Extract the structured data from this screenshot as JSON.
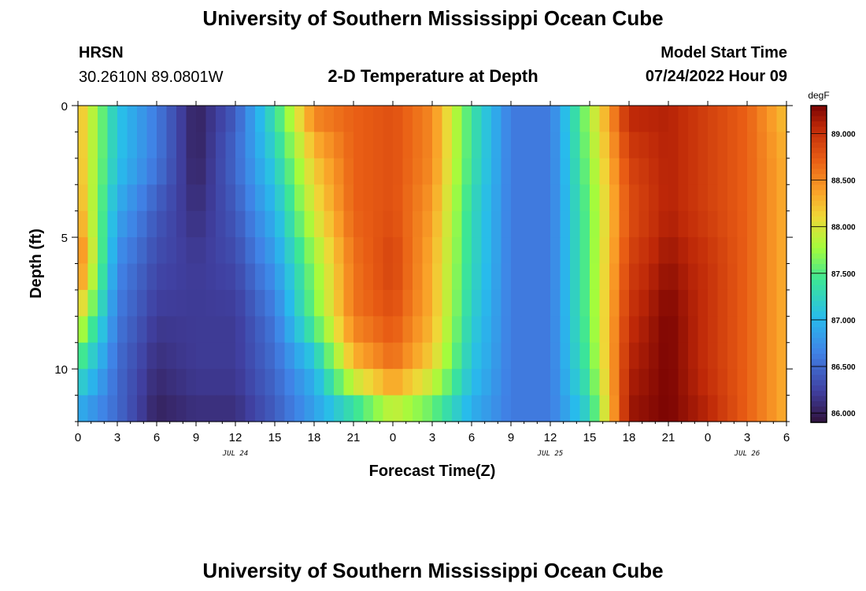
{
  "page": {
    "title": "University of Southern Mississippi Ocean Cube",
    "station": "HRSN",
    "coords": "30.2610N  89.0801W",
    "subtitle": "2-D Temperature at Depth",
    "model_start_label": "Model Start Time",
    "model_start_value": "07/24/2022 Hour 09",
    "footer_title": "University of Southern Mississippi Ocean Cube"
  },
  "chart_data": {
    "type": "heatmap",
    "title": "2-D Temperature at Depth",
    "xlabel": "Forecast Time(Z)",
    "ylabel": "Depth (ft)",
    "x_unit": "hours from Jul 24 00Z",
    "x_range": [
      0,
      54
    ],
    "y_range": [
      0,
      12
    ],
    "y_inverted": true,
    "x_ticks": [
      0,
      3,
      6,
      9,
      12,
      15,
      18,
      21,
      24,
      27,
      30,
      33,
      36,
      39,
      42,
      45,
      48,
      51,
      54
    ],
    "x_tick_labels": [
      "0",
      "3",
      "6",
      "9",
      "12",
      "15",
      "18",
      "21",
      "0",
      "3",
      "6",
      "9",
      "12",
      "15",
      "18",
      "21",
      "0",
      "3",
      "6"
    ],
    "y_ticks": [
      0,
      5,
      10
    ],
    "y_tick_labels": [
      "0",
      "5",
      "10"
    ],
    "date_labels": [
      {
        "text": "JUL 24",
        "x": 12
      },
      {
        "text": "JUL 25",
        "x": 36
      },
      {
        "text": "JUL 26",
        "x": 51
      }
    ],
    "colorbar": {
      "unit": "degF",
      "min": 85.9,
      "max": 89.3,
      "ticks": [
        86.0,
        86.5,
        87.0,
        87.5,
        88.0,
        88.5,
        89.0
      ],
      "tick_labels": [
        "86.000",
        "86.500",
        "87.000",
        "87.500",
        "88.000",
        "88.500",
        "89.000"
      ]
    },
    "time_hours": [
      0,
      3,
      6,
      9,
      12,
      15,
      18,
      21,
      24,
      27,
      30,
      33,
      36,
      39,
      42,
      45,
      48,
      51,
      54
    ],
    "depths_ft": [
      0,
      2,
      4,
      6,
      8,
      10,
      12
    ],
    "temperature_degF": [
      [
        88.3,
        87.1,
        86.6,
        86.0,
        86.4,
        87.4,
        88.6,
        88.7,
        88.8,
        88.5,
        87.4,
        86.6,
        86.6,
        87.8,
        89.1,
        89.1,
        88.9,
        88.7,
        88.2
      ],
      [
        88.3,
        87.1,
        86.6,
        86.0,
        86.5,
        87.2,
        88.2,
        88.7,
        88.8,
        88.5,
        87.4,
        86.6,
        86.6,
        87.7,
        88.9,
        89.1,
        88.9,
        88.7,
        88.3
      ],
      [
        88.4,
        86.9,
        86.4,
        86.1,
        86.4,
        87.0,
        88.0,
        88.7,
        88.8,
        88.4,
        87.3,
        86.6,
        86.6,
        87.6,
        88.8,
        89.1,
        88.9,
        88.7,
        88.3
      ],
      [
        88.7,
        86.7,
        86.3,
        86.2,
        86.3,
        86.8,
        87.7,
        88.6,
        88.9,
        88.3,
        87.3,
        86.6,
        86.6,
        87.6,
        88.9,
        89.2,
        89.0,
        88.7,
        88.3
      ],
      [
        88.1,
        86.6,
        86.2,
        86.2,
        86.2,
        86.6,
        87.6,
        88.6,
        88.8,
        88.3,
        87.2,
        86.6,
        86.6,
        87.6,
        89.0,
        89.3,
        89.0,
        88.7,
        88.3
      ],
      [
        87.4,
        86.5,
        86.1,
        86.2,
        86.2,
        86.5,
        87.0,
        88.2,
        88.6,
        88.1,
        87.1,
        86.6,
        86.6,
        87.5,
        89.1,
        89.3,
        89.0,
        88.7,
        88.3
      ],
      [
        86.8,
        86.5,
        86.0,
        86.1,
        86.1,
        86.4,
        86.8,
        87.1,
        87.7,
        87.4,
        86.9,
        86.6,
        86.6,
        87.2,
        89.2,
        89.3,
        89.1,
        88.7,
        88.3
      ]
    ]
  }
}
